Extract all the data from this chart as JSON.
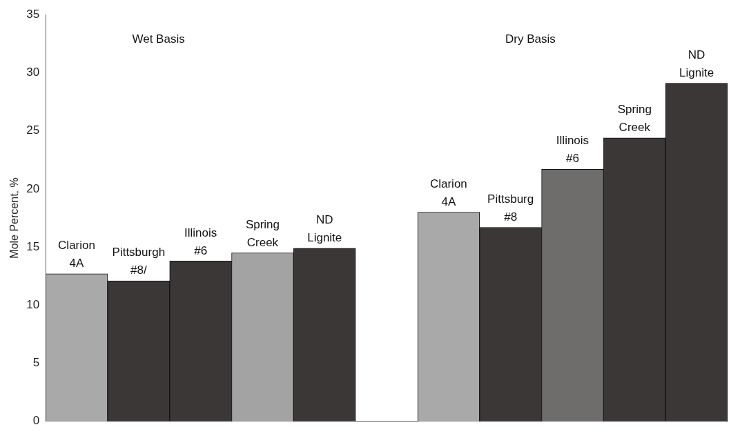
{
  "chart_data": {
    "type": "bar",
    "ylabel": "Mole Percent, %",
    "categories": [
      "Clarion 4A",
      "Pittsburgh #8/",
      "Illinois #6",
      "Spring Creek",
      "ND Lignite",
      null,
      "Clarion 4A",
      "Pittsburg #8",
      "Illinois #6",
      "Spring Creek",
      "ND Lignite"
    ],
    "values": [
      12.7,
      12.1,
      13.8,
      14.5,
      14.9,
      null,
      18.0,
      16.7,
      21.7,
      24.4,
      29.1
    ],
    "colors": [
      "#a9a9a9",
      "#3b3737",
      "#3b3737",
      "#a3a3a3",
      "#3b3737",
      "#ffffff",
      "#a9a9a9",
      "#3b3737",
      "#6f6c6c",
      "#3b3737",
      "#3b3737"
    ],
    "ylim": [
      0,
      35
    ],
    "yticks": [
      0,
      5,
      10,
      15,
      20,
      25,
      30,
      35
    ],
    "grid": false,
    "annotations": [
      "Wet Basis",
      "Dry Basis"
    ]
  }
}
